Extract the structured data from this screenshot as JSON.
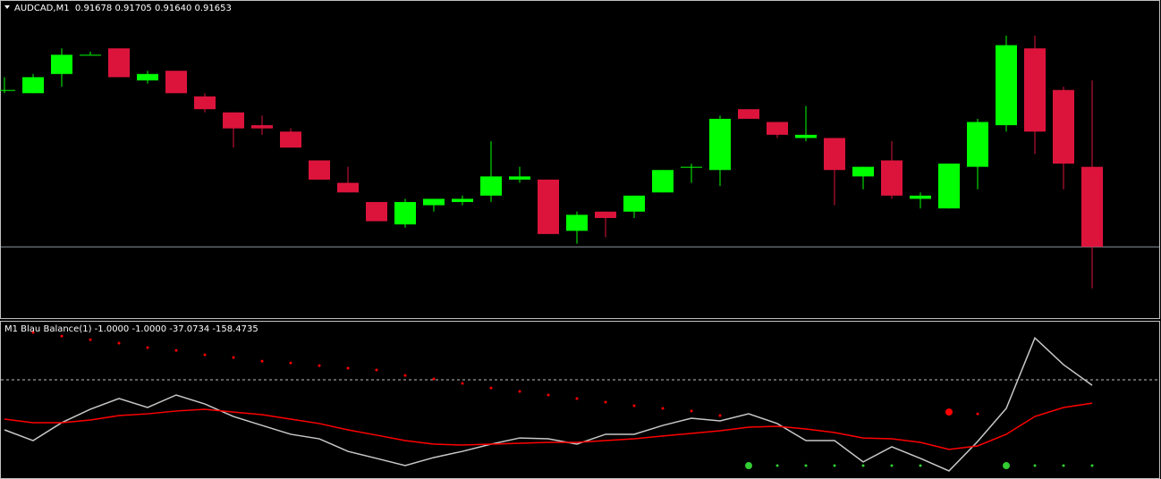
{
  "chart_data": [
    {
      "type": "candlestick",
      "title": "AUDCAD,M1  0.91678 0.91705 0.91640 0.91653",
      "open": [
        0.91702,
        0.91701,
        0.91707,
        0.91713,
        0.91715,
        0.91705,
        0.91708,
        0.917,
        0.91695,
        0.91691,
        0.91689,
        0.9168,
        0.91673,
        0.91667,
        0.9166,
        0.91666,
        0.91667,
        0.91669,
        0.91674,
        0.91674,
        0.91658,
        0.91664,
        0.91664,
        0.9167,
        0.91678,
        0.91677,
        0.91696,
        0.91692,
        0.91687,
        0.91687,
        0.91675,
        0.9168,
        0.91668,
        0.91665,
        0.91678,
        0.91691,
        0.91715,
        0.91702,
        0.91678
      ],
      "high": [
        0.91706,
        0.91707,
        0.91715,
        0.91714,
        0.91715,
        0.91708,
        0.91708,
        0.91701,
        0.91695,
        0.91694,
        0.9169,
        0.9168,
        0.91678,
        0.91667,
        0.91668,
        0.91668,
        0.91669,
        0.91686,
        0.91678,
        0.91674,
        0.91664,
        0.91664,
        0.91669,
        0.91677,
        0.91679,
        0.91694,
        0.91696,
        0.91692,
        0.91697,
        0.91687,
        0.91678,
        0.91686,
        0.9167,
        0.91679,
        0.91693,
        0.91719,
        0.91719,
        0.91703,
        0.91705
      ],
      "low": [
        0.91701,
        0.91701,
        0.91703,
        0.91713,
        0.91706,
        0.91704,
        0.91701,
        0.91695,
        0.91684,
        0.91688,
        0.91684,
        0.91674,
        0.9167,
        0.91661,
        0.91659,
        0.91664,
        0.91666,
        0.91667,
        0.91673,
        0.91657,
        0.91654,
        0.91656,
        0.91662,
        0.9167,
        0.91673,
        0.91672,
        0.91693,
        0.91687,
        0.91686,
        0.91666,
        0.91671,
        0.91668,
        0.91665,
        0.91665,
        0.91671,
        0.91689,
        0.91682,
        0.91671,
        0.9164
      ],
      "close": [
        0.91702,
        0.91706,
        0.91713,
        0.91713,
        0.91706,
        0.91707,
        0.91701,
        0.91696,
        0.9169,
        0.9169,
        0.91684,
        0.91674,
        0.9167,
        0.91661,
        0.91667,
        0.91668,
        0.91668,
        0.91675,
        0.91675,
        0.91657,
        0.91663,
        0.91662,
        0.91669,
        0.91677,
        0.91678,
        0.91693,
        0.91693,
        0.91688,
        0.91688,
        0.91677,
        0.91678,
        0.91669,
        0.91669,
        0.91679,
        0.91692,
        0.91716,
        0.91689,
        0.91679,
        0.91653
      ],
      "up_color": "#00ff00",
      "down_color": "#dc143c",
      "bid_line_color": "#8c96a0",
      "ylim": [
        0.91631,
        0.91729
      ]
    },
    {
      "type": "indicator",
      "title": "M1 Blau Balance(1) -1.0000 -1.0000 -37.0734 -158.4735",
      "ylim": [
        -674,
        395
      ],
      "level": 0,
      "series": [
        {
          "type": "line",
          "color": "#c8c8c8",
          "values": [
            -340,
            -413,
            -291,
            -200,
            -127,
            -188,
            -103,
            -164,
            -249,
            -310,
            -370,
            -401,
            -486,
            -534,
            -583,
            -528,
            -486,
            -437,
            -395,
            -401,
            -437,
            -370,
            -370,
            -310,
            -261,
            -279,
            -231,
            -297,
            -413,
            -413,
            -558,
            -455,
            -534,
            -619,
            -419,
            -194,
            285,
            103,
            -37.0734
          ]
        },
        {
          "type": "line",
          "color": "#ff0000",
          "values": [
            -267,
            -291,
            -291,
            -273,
            -243,
            -231,
            -212,
            -200,
            -219,
            -237,
            -267,
            -297,
            -340,
            -376,
            -413,
            -437,
            -443,
            -437,
            -431,
            -425,
            -425,
            -413,
            -401,
            -382,
            -364,
            -346,
            -322,
            -316,
            -334,
            -358,
            -395,
            -401,
            -425,
            -473,
            -449,
            -370,
            -249,
            -188,
            -158.4735
          ]
        },
        {
          "type": "dots",
          "color": "#ff0000",
          "size": 1.5,
          "values": [
            null,
            322,
            297,
            273,
            249,
            219,
            200,
            170,
            152,
            127,
            115,
            97,
            79,
            67,
            30,
            6,
            -24,
            -55,
            -79,
            -103,
            -127,
            -152,
            -176,
            -194,
            -212,
            -243,
            null,
            null,
            null,
            null,
            null,
            null,
            null,
            null,
            -231,
            null,
            null,
            null,
            null
          ]
        },
        {
          "type": "dots",
          "color": "#ff0000",
          "size": 4,
          "values": [
            null,
            null,
            null,
            null,
            null,
            null,
            null,
            null,
            null,
            null,
            null,
            null,
            null,
            null,
            null,
            null,
            null,
            null,
            null,
            null,
            null,
            null,
            null,
            null,
            null,
            null,
            null,
            null,
            null,
            null,
            null,
            null,
            null,
            -219,
            null,
            null,
            null,
            null,
            null
          ]
        },
        {
          "type": "dots",
          "color": "#32cd32",
          "size": 1.5,
          "values": [
            null,
            null,
            null,
            null,
            null,
            null,
            null,
            null,
            null,
            null,
            null,
            null,
            null,
            null,
            null,
            null,
            null,
            null,
            null,
            null,
            null,
            null,
            null,
            null,
            null,
            null,
            null,
            -583,
            -583,
            -583,
            -583,
            -583,
            -583,
            null,
            null,
            null,
            -583,
            -583,
            -583
          ]
        },
        {
          "type": "dots",
          "color": "#32cd32",
          "size": 4,
          "values": [
            null,
            null,
            null,
            null,
            null,
            null,
            null,
            null,
            null,
            null,
            null,
            null,
            null,
            null,
            null,
            null,
            null,
            null,
            null,
            null,
            null,
            null,
            null,
            null,
            null,
            null,
            -583,
            null,
            null,
            null,
            null,
            null,
            null,
            null,
            null,
            -583,
            null,
            null,
            null
          ]
        }
      ]
    }
  ]
}
